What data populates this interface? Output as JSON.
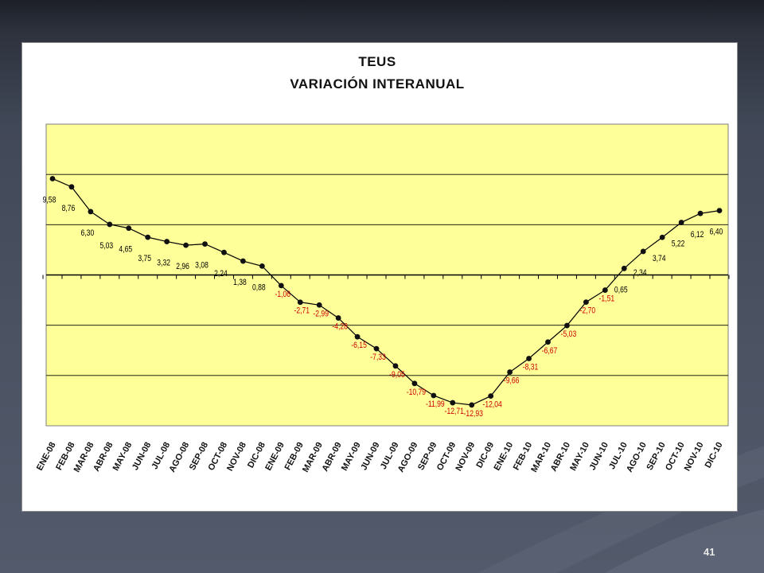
{
  "slide": {
    "page_number": "41"
  },
  "chart_data": {
    "type": "line",
    "title": "TEUS",
    "subtitle": "VARIACIÓN INTERANUAL",
    "xlabel": "",
    "ylabel": "",
    "ylim": [
      -15,
      15
    ],
    "grid": true,
    "legend": "none",
    "categories": [
      "ENE-08",
      "FEB-08",
      "MAR-08",
      "ABR-08",
      "MAY-08",
      "JUN-08",
      "JUL-08",
      "AGO-08",
      "SEP-08",
      "OCT-08",
      "NOV-08",
      "DIC-08",
      "ENE-09",
      "FEB-09",
      "MAR-09",
      "ABR-09",
      "MAY-09",
      "JUN-09",
      "JUL-09",
      "AGO-09",
      "SEP-09",
      "OCT-09",
      "NOV-09",
      "DIC-09",
      "ENE-10",
      "FEB-10",
      "MAR-10",
      "ABR-10",
      "MAY-10",
      "JUN-10",
      "JUL-10",
      "AGO-10",
      "SEP-10",
      "OCT-10",
      "NOV-10",
      "DIC-10"
    ],
    "values": [
      9.58,
      8.76,
      6.3,
      5.03,
      4.65,
      3.75,
      3.32,
      2.96,
      3.08,
      2.24,
      1.38,
      0.88,
      -1.06,
      -2.71,
      -2.99,
      -4.28,
      -6.15,
      -7.33,
      -9.05,
      -10.79,
      -11.99,
      -12.71,
      -12.93,
      -12.04,
      -9.66,
      -8.31,
      -6.67,
      -5.03,
      -2.7,
      -1.51,
      0.65,
      2.34,
      3.74,
      5.22,
      6.12,
      6.4
    ],
    "data_labels": [
      "9,58",
      "8,76",
      "6,30",
      "5,03",
      "4,65",
      "3,75",
      "3,32",
      "2,96",
      "3,08",
      "2,24",
      "1,38",
      "0,88",
      "-1,06",
      "-2,71",
      "-2,99",
      "-4,28",
      "-6,15",
      "-7,33",
      "-9,05",
      "-10,79",
      "-11,99",
      "-12,71",
      "-12,93",
      "-12,04",
      "-9,66",
      "-8,31",
      "-6,67",
      "-5,03",
      "-2,70",
      "-1,51",
      "0,65",
      "2,34",
      "3,74",
      "5,22",
      "6,12",
      "6,40"
    ],
    "colors": {
      "plot_background": "#ffff99",
      "line": "#000000",
      "positive_label": "#000000",
      "negative_label": "#cc0000",
      "gridline": "#000000"
    }
  }
}
